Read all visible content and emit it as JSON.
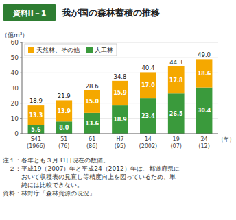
{
  "chart_data": {
    "type": "bar",
    "title": "我が国の森林蓄積の推移",
    "subtitle": "資料II－1",
    "ylabel": "（億m³）",
    "xlabel": "（年）",
    "categories": [
      "S41\n(1966)",
      "51\n(76)",
      "61\n(86)",
      "H7\n(95)",
      "14\n(2002)",
      "19\n(07)",
      "24\n(12)"
    ],
    "series": [
      {
        "name": "人工林",
        "color": "#3A9A3C",
        "values": [
          5.6,
          8.0,
          13.6,
          18.9,
          23.4,
          26.5,
          30.4
        ],
        "value_labels": [
          "5.6",
          "8.0",
          "13.6",
          "18.9",
          "23.4",
          "26.5",
          "30.4"
        ]
      },
      {
        "name": "天然林、その他",
        "color": "#F5A800",
        "values": [
          13.3,
          13.9,
          15.0,
          15.9,
          17.0,
          17.8,
          18.6
        ],
        "value_labels": [
          "13.3",
          "13.9",
          "15.0",
          "15.9",
          "17.0",
          "17.8",
          "18.6"
        ]
      }
    ],
    "totals": [
      18.9,
      21.9,
      28.6,
      34.8,
      40.4,
      44.3,
      49.0
    ],
    "total_labels": [
      "18.9",
      "21.9",
      "28.6",
      "34.8",
      "40.4",
      "44.3",
      "49.0"
    ],
    "stacked": true,
    "data_labels": true,
    "grid": true,
    "legend": "upper left",
    "ylim": [
      0,
      60
    ],
    "yticks": [
      0,
      10,
      20,
      30,
      40,
      50,
      60
    ],
    "annotations": [
      "注１：各年とも３月31日現在の数値。",
      "　２：平成19（2007）年と平成24（2012）年は、都道府県に",
      "　　　おいて収穫表の見直し等精度向上を図っているため、単",
      "　　　純には比較できない。",
      "資料：林野庁「森林資源の現況」"
    ]
  }
}
